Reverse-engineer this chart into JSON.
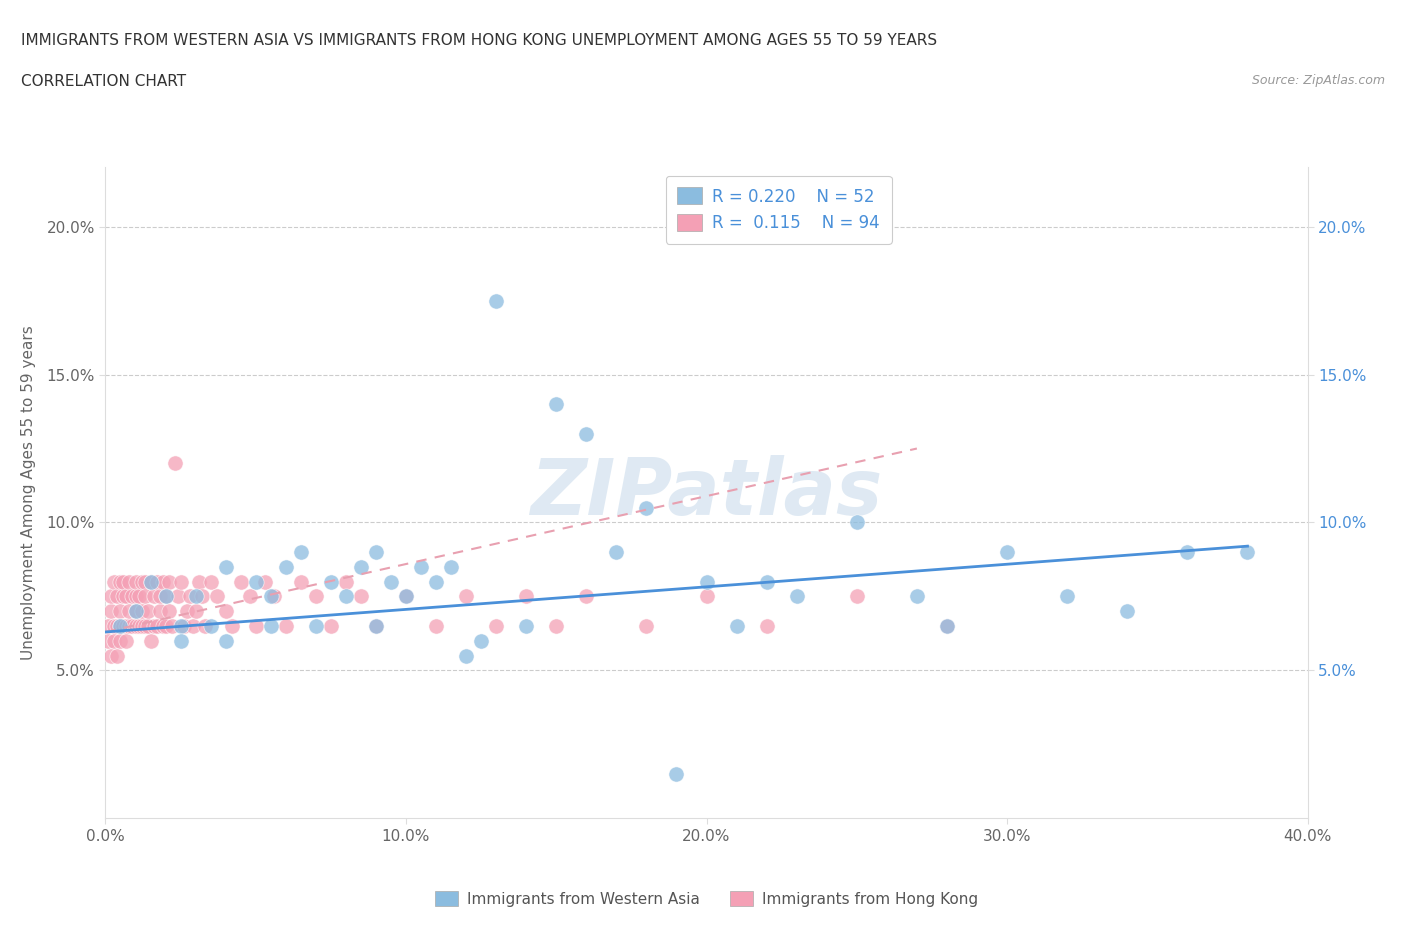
{
  "title_line1": "IMMIGRANTS FROM WESTERN ASIA VS IMMIGRANTS FROM HONG KONG UNEMPLOYMENT AMONG AGES 55 TO 59 YEARS",
  "title_line2": "CORRELATION CHART",
  "source_text": "Source: ZipAtlas.com",
  "ylabel": "Unemployment Among Ages 55 to 59 years",
  "xlim": [
    0.0,
    0.4
  ],
  "ylim": [
    0.0,
    0.22
  ],
  "xticks": [
    0.0,
    0.1,
    0.2,
    0.3,
    0.4
  ],
  "xticklabels": [
    "0.0%",
    "10.0%",
    "20.0%",
    "30.0%",
    "40.0%"
  ],
  "yticks": [
    0.05,
    0.1,
    0.15,
    0.2
  ],
  "yticklabels": [
    "5.0%",
    "10.0%",
    "15.0%",
    "20.0%"
  ],
  "watermark": "ZIPatlas",
  "color_western_asia": "#8BBCDF",
  "color_hong_kong": "#F4A0B5",
  "trendline_color_western_asia": "#4A90D9",
  "trendline_color_hong_kong": "#E8A0B0",
  "western_asia_x": [
    0.005,
    0.01,
    0.015,
    0.02,
    0.025,
    0.025,
    0.03,
    0.035,
    0.04,
    0.04,
    0.05,
    0.055,
    0.055,
    0.06,
    0.065,
    0.07,
    0.075,
    0.08,
    0.085,
    0.09,
    0.09,
    0.095,
    0.1,
    0.105,
    0.11,
    0.115,
    0.12,
    0.125,
    0.13,
    0.14,
    0.15,
    0.16,
    0.17,
    0.18,
    0.19,
    0.2,
    0.21,
    0.22,
    0.23,
    0.25,
    0.27,
    0.28,
    0.3,
    0.32,
    0.34,
    0.36,
    0.38
  ],
  "western_asia_y": [
    0.065,
    0.07,
    0.08,
    0.075,
    0.065,
    0.06,
    0.075,
    0.065,
    0.06,
    0.085,
    0.08,
    0.065,
    0.075,
    0.085,
    0.09,
    0.065,
    0.08,
    0.075,
    0.085,
    0.09,
    0.065,
    0.08,
    0.075,
    0.085,
    0.08,
    0.085,
    0.055,
    0.06,
    0.175,
    0.065,
    0.14,
    0.13,
    0.09,
    0.105,
    0.015,
    0.08,
    0.065,
    0.08,
    0.075,
    0.1,
    0.075,
    0.065,
    0.09,
    0.075,
    0.07,
    0.09,
    0.09
  ],
  "hong_kong_x": [
    0.001,
    0.001,
    0.002,
    0.002,
    0.002,
    0.003,
    0.003,
    0.003,
    0.004,
    0.004,
    0.004,
    0.005,
    0.005,
    0.005,
    0.005,
    0.006,
    0.006,
    0.006,
    0.007,
    0.007,
    0.007,
    0.008,
    0.008,
    0.008,
    0.009,
    0.009,
    0.01,
    0.01,
    0.01,
    0.01,
    0.011,
    0.011,
    0.012,
    0.012,
    0.012,
    0.013,
    0.013,
    0.013,
    0.014,
    0.014,
    0.015,
    0.015,
    0.016,
    0.016,
    0.017,
    0.017,
    0.018,
    0.018,
    0.019,
    0.019,
    0.02,
    0.02,
    0.021,
    0.021,
    0.022,
    0.023,
    0.024,
    0.025,
    0.026,
    0.027,
    0.028,
    0.029,
    0.03,
    0.031,
    0.032,
    0.033,
    0.035,
    0.037,
    0.04,
    0.042,
    0.045,
    0.048,
    0.05,
    0.053,
    0.056,
    0.06,
    0.065,
    0.07,
    0.075,
    0.08,
    0.085,
    0.09,
    0.1,
    0.11,
    0.12,
    0.13,
    0.14,
    0.15,
    0.16,
    0.18,
    0.2,
    0.22,
    0.25,
    0.28
  ],
  "hong_kong_y": [
    0.065,
    0.06,
    0.07,
    0.075,
    0.055,
    0.065,
    0.08,
    0.06,
    0.075,
    0.065,
    0.055,
    0.08,
    0.07,
    0.065,
    0.06,
    0.075,
    0.065,
    0.08,
    0.065,
    0.075,
    0.06,
    0.08,
    0.065,
    0.07,
    0.075,
    0.065,
    0.065,
    0.075,
    0.08,
    0.07,
    0.065,
    0.075,
    0.08,
    0.065,
    0.07,
    0.065,
    0.08,
    0.075,
    0.065,
    0.07,
    0.08,
    0.06,
    0.075,
    0.065,
    0.08,
    0.065,
    0.07,
    0.075,
    0.065,
    0.08,
    0.075,
    0.065,
    0.08,
    0.07,
    0.065,
    0.12,
    0.075,
    0.08,
    0.065,
    0.07,
    0.075,
    0.065,
    0.07,
    0.08,
    0.075,
    0.065,
    0.08,
    0.075,
    0.07,
    0.065,
    0.08,
    0.075,
    0.065,
    0.08,
    0.075,
    0.065,
    0.08,
    0.075,
    0.065,
    0.08,
    0.075,
    0.065,
    0.075,
    0.065,
    0.075,
    0.065,
    0.075,
    0.065,
    0.075,
    0.065,
    0.075,
    0.065,
    0.075,
    0.065
  ],
  "wa_trend_start_x": 0.0,
  "wa_trend_start_y": 0.063,
  "wa_trend_end_x": 0.38,
  "wa_trend_end_y": 0.092,
  "hk_trend_start_x": 0.0,
  "hk_trend_start_y": 0.063,
  "hk_trend_end_x": 0.27,
  "hk_trend_end_y": 0.125
}
